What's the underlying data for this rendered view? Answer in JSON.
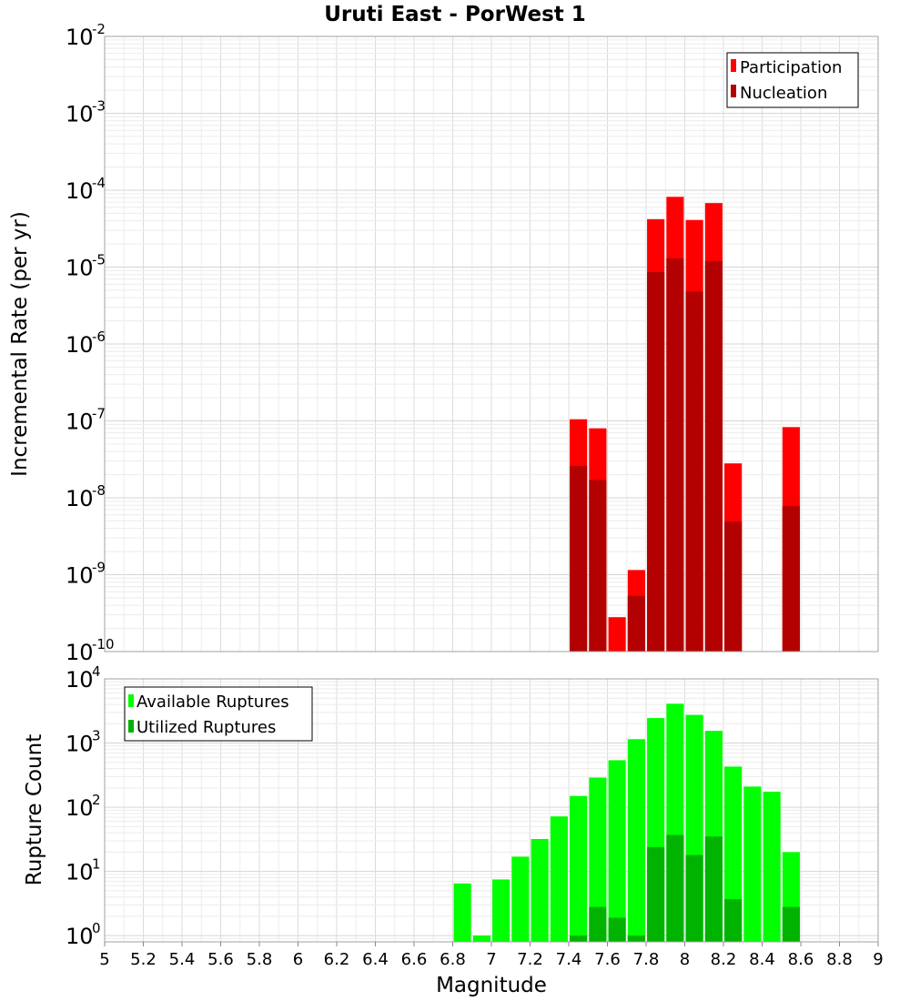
{
  "chart_data": [
    {
      "type": "bar",
      "title": "Uruti East - PorWest 1",
      "xlabel": "",
      "ylabel": "Incremental Rate (per yr)",
      "yscale": "log",
      "ylim": [
        1e-10,
        0.01
      ],
      "xlim": [
        5,
        9
      ],
      "y_tick_exponents": [
        -10,
        -9,
        -8,
        -7,
        -6,
        -5,
        -4,
        -3,
        -2
      ],
      "grid": true,
      "legend_position": "top-right",
      "x": [
        7.45,
        7.55,
        7.65,
        7.75,
        7.85,
        7.95,
        8.05,
        8.15,
        8.25,
        8.55
      ],
      "series": [
        {
          "name": "Participation",
          "color": "#ff0000",
          "values": [
            1.05e-07,
            8e-08,
            2.8e-10,
            1.15e-09,
            4.2e-05,
            8.2e-05,
            4.1e-05,
            6.8e-05,
            2.8e-08,
            8.3e-08
          ]
        },
        {
          "name": "Nucleation",
          "color": "#b30000",
          "values": [
            2.6e-08,
            1.7e-08,
            null,
            5.3e-10,
            8.6e-06,
            1.3e-05,
            4.8e-06,
            1.2e-05,
            4.9e-09,
            7.8e-09
          ]
        }
      ]
    },
    {
      "type": "bar",
      "title": "",
      "xlabel": "Magnitude",
      "ylabel": "Rupture Count",
      "yscale": "log",
      "ylim": [
        0.8,
        10000
      ],
      "xlim": [
        5,
        9
      ],
      "y_tick_exponents": [
        0,
        1,
        2,
        3,
        4
      ],
      "x_ticks": [
        "5",
        "5.2",
        "5.4",
        "5.6",
        "5.8",
        "6",
        "6.2",
        "6.4",
        "6.6",
        "6.8",
        "7",
        "7.2",
        "7.4",
        "7.6",
        "7.8",
        "8",
        "8.2",
        "8.4",
        "8.6",
        "8.8",
        "9"
      ],
      "grid": true,
      "legend_position": "top-left",
      "x": [
        6.85,
        6.95,
        7.05,
        7.15,
        7.25,
        7.35,
        7.45,
        7.55,
        7.65,
        7.75,
        7.85,
        7.95,
        8.05,
        8.15,
        8.25,
        8.35,
        8.45,
        8.55
      ],
      "series": [
        {
          "name": "Available Ruptures",
          "color": "#00ff00",
          "values": [
            6.5,
            1,
            7.5,
            17,
            32,
            72,
            150,
            290,
            540,
            1150,
            2450,
            4100,
            2750,
            1550,
            430,
            210,
            175,
            20
          ]
        },
        {
          "name": "Utilized Ruptures",
          "color": "#00b300",
          "values": [
            null,
            null,
            null,
            null,
            null,
            null,
            1,
            2.8,
            1.9,
            1,
            24,
            37,
            18,
            35,
            3.7,
            null,
            null,
            2.8
          ]
        }
      ]
    }
  ]
}
